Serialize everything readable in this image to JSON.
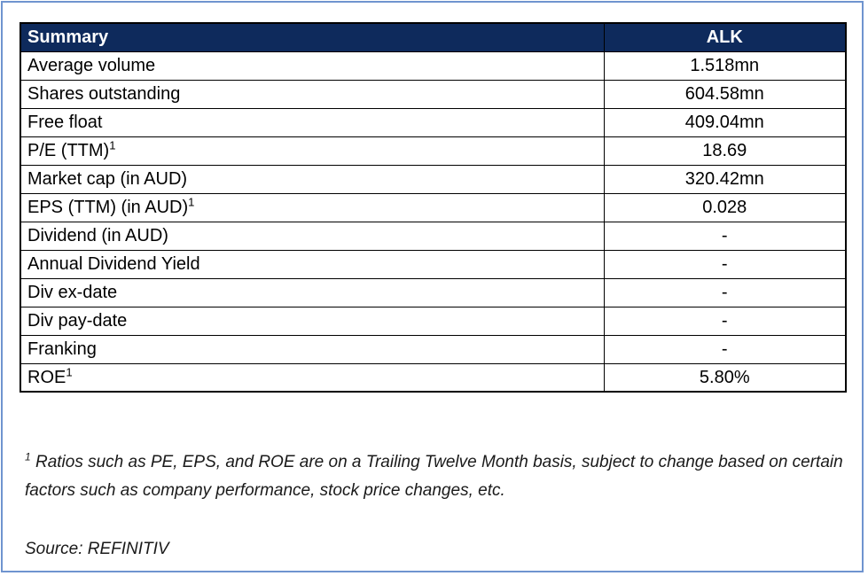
{
  "table": {
    "header_label": "Summary",
    "header_value": "ALK",
    "rows": [
      {
        "label": "Average volume",
        "sup": "",
        "value": "1.518mn"
      },
      {
        "label": "Shares outstanding",
        "sup": "",
        "value": "604.58mn"
      },
      {
        "label": "Free float",
        "sup": "",
        "value": "409.04mn"
      },
      {
        "label": "P/E (TTM)",
        "sup": "1",
        "value": "18.69"
      },
      {
        "label": "Market cap (in AUD)",
        "sup": "",
        "value": "320.42mn"
      },
      {
        "label": "EPS (TTM) (in AUD)",
        "sup": "1",
        "value": "0.028"
      },
      {
        "label": "Dividend (in AUD)",
        "sup": "",
        "value": "-"
      },
      {
        "label": "Annual Dividend Yield",
        "sup": "",
        "value": "-"
      },
      {
        "label": "Div ex-date",
        "sup": "",
        "value": "-"
      },
      {
        "label": "Div pay-date",
        "sup": "",
        "value": "-"
      },
      {
        "label": "Franking",
        "sup": "",
        "value": "-"
      },
      {
        "label": "ROE",
        "sup": "1",
        "value": "5.80%"
      }
    ]
  },
  "footnote": {
    "marker": "1",
    "text": "Ratios such as PE, EPS, and ROE are on a Trailing Twelve Month basis, subject to change based on certain factors such as company performance, stock price changes, etc."
  },
  "source": "Source: REFINITIV",
  "colors": {
    "header_bg": "#0e2a5c",
    "frame_border": "#6f94cf"
  }
}
